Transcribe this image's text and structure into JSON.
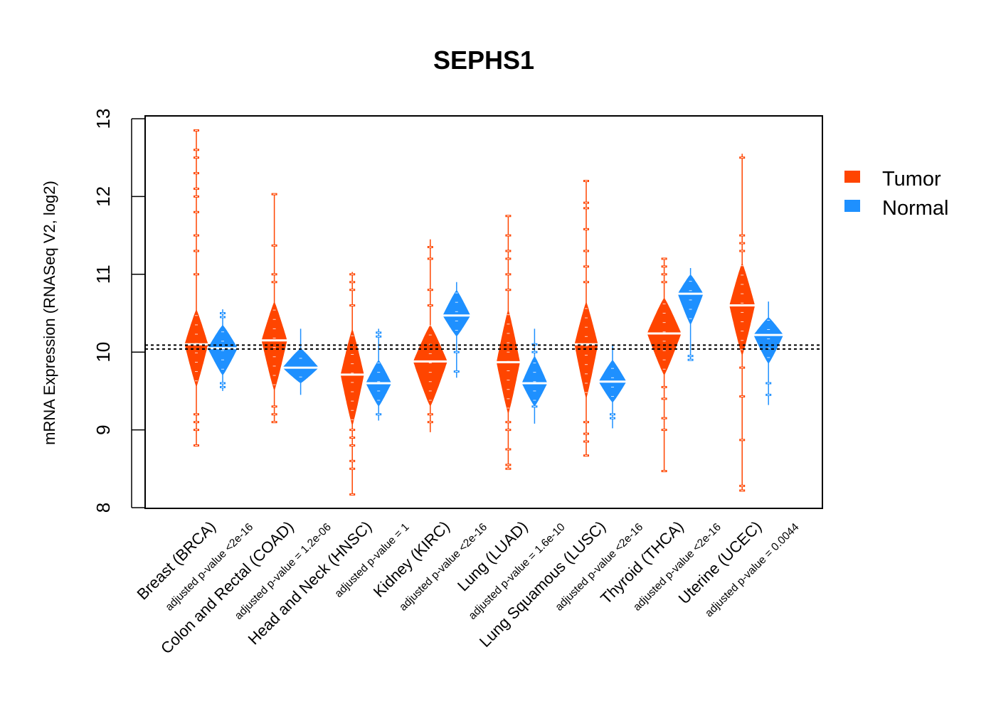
{
  "chart_data": {
    "type": "violin",
    "title": "SEPHS1",
    "xlabel": "",
    "ylabel": "mRNA Expression (RNASeq V2, log2)",
    "ylim": [
      8,
      13
    ],
    "yticks": [
      8,
      9,
      10,
      11,
      12,
      13
    ],
    "grid": false,
    "reference_lines": [
      10.04,
      10.09
    ],
    "reference_line_style": "dotted",
    "legend": {
      "placement": "right",
      "entries": [
        {
          "name": "Tumor",
          "color": "#FF4500"
        },
        {
          "name": "Normal",
          "color": "#1E90FF"
        }
      ]
    },
    "categories": [
      {
        "label": "Breast (BRCA)",
        "pvalue_label": "adjusted p-value <2e-16"
      },
      {
        "label": "Colon and Rectal (COAD)",
        "pvalue_label": "adjusted p-value = 1.2e-06"
      },
      {
        "label": "Head and Neck (HNSC)",
        "pvalue_label": "adjusted p-value = 1"
      },
      {
        "label": "Kidney (KIRC)",
        "pvalue_label": "adjusted p-value <2e-16"
      },
      {
        "label": "Lung (LUAD)",
        "pvalue_label": "adjusted p-value = 1.6e-10"
      },
      {
        "label": "Lung Squamous (LUSC)",
        "pvalue_label": "adjusted p-value <2e-16"
      },
      {
        "label": "Thyroid (THCA)",
        "pvalue_label": "adjusted p-value <2e-16"
      },
      {
        "label": "Uterine (UCEC)",
        "pvalue_label": "adjusted p-value = 0.0044"
      }
    ],
    "series": [
      {
        "name": "Tumor",
        "color": "#FF4500",
        "groups": [
          {
            "median": 10.1,
            "q1": 9.75,
            "q3": 10.45,
            "min": 8.8,
            "max": 12.85,
            "bulk_low": 9.55,
            "bulk_high": 10.55,
            "rel_width": 0.55
          },
          {
            "median": 10.15,
            "q1": 9.8,
            "q3": 10.5,
            "min": 9.1,
            "max": 12.03,
            "bulk_low": 9.5,
            "bulk_high": 10.65,
            "rel_width": 0.6
          },
          {
            "median": 9.71,
            "q1": 9.4,
            "q3": 10.05,
            "min": 8.17,
            "max": 11.03,
            "bulk_low": 9.05,
            "bulk_high": 10.3,
            "rel_width": 0.55
          },
          {
            "median": 9.88,
            "q1": 9.65,
            "q3": 10.15,
            "min": 8.97,
            "max": 11.45,
            "bulk_low": 9.3,
            "bulk_high": 10.35,
            "rel_width": 0.8
          },
          {
            "median": 9.87,
            "q1": 9.55,
            "q3": 10.2,
            "min": 8.5,
            "max": 11.75,
            "bulk_low": 9.2,
            "bulk_high": 10.55,
            "rel_width": 0.55
          },
          {
            "median": 10.1,
            "q1": 9.75,
            "q3": 10.4,
            "min": 8.67,
            "max": 12.2,
            "bulk_low": 9.4,
            "bulk_high": 10.65,
            "rel_width": 0.55
          },
          {
            "median": 10.24,
            "q1": 9.95,
            "q3": 10.5,
            "min": 8.47,
            "max": 11.2,
            "bulk_low": 9.7,
            "bulk_high": 10.7,
            "rel_width": 0.8
          },
          {
            "median": 10.6,
            "q1": 10.3,
            "q3": 10.85,
            "min": 8.22,
            "max": 12.55,
            "bulk_low": 9.95,
            "bulk_high": 11.15,
            "rel_width": 0.6
          }
        ]
      },
      {
        "name": "Normal",
        "color": "#1E90FF",
        "groups": [
          {
            "median": 10.05,
            "q1": 9.9,
            "q3": 10.2,
            "min": 9.5,
            "max": 10.55,
            "bulk_low": 9.7,
            "bulk_high": 10.35,
            "rel_width": 0.7
          },
          {
            "median": 9.8,
            "q1": 9.7,
            "q3": 9.92,
            "min": 9.45,
            "max": 10.3,
            "bulk_low": 9.6,
            "bulk_high": 10.05,
            "rel_width": 0.85
          },
          {
            "median": 9.6,
            "q1": 9.48,
            "q3": 9.72,
            "min": 9.12,
            "max": 10.3,
            "bulk_low": 9.3,
            "bulk_high": 9.9,
            "rel_width": 0.6
          },
          {
            "median": 10.47,
            "q1": 10.35,
            "q3": 10.65,
            "min": 9.67,
            "max": 10.9,
            "bulk_low": 10.2,
            "bulk_high": 10.8,
            "rel_width": 0.65
          },
          {
            "median": 9.6,
            "q1": 9.48,
            "q3": 9.72,
            "min": 9.08,
            "max": 10.3,
            "bulk_low": 9.3,
            "bulk_high": 9.95,
            "rel_width": 0.6
          },
          {
            "median": 9.62,
            "q1": 9.52,
            "q3": 9.72,
            "min": 9.02,
            "max": 10.08,
            "bulk_low": 9.35,
            "bulk_high": 9.9,
            "rel_width": 0.65
          },
          {
            "median": 10.75,
            "q1": 10.6,
            "q3": 10.85,
            "min": 9.9,
            "max": 11.08,
            "bulk_low": 10.35,
            "bulk_high": 11.0,
            "rel_width": 0.6
          },
          {
            "median": 10.22,
            "q1": 10.1,
            "q3": 10.3,
            "min": 9.32,
            "max": 10.65,
            "bulk_low": 9.85,
            "bulk_high": 10.45,
            "rel_width": 0.7
          }
        ]
      }
    ],
    "outliers": {
      "Tumor": [
        [
          8.8,
          9.0,
          9.1,
          9.2,
          11.0,
          11.3,
          11.5,
          11.8,
          12.0,
          12.1,
          12.3,
          12.5,
          12.6,
          12.85
        ],
        [
          9.1,
          9.2,
          9.3,
          10.9,
          11.0,
          11.37,
          12.03
        ],
        [
          8.17,
          8.5,
          8.6,
          8.8,
          8.9,
          9.0,
          10.6,
          10.8,
          10.9,
          11.0
        ],
        [
          9.1,
          9.2,
          10.6,
          10.8,
          11.2,
          11.35
        ],
        [
          8.5,
          8.55,
          8.75,
          9.0,
          9.1,
          10.8,
          11.0,
          11.2,
          11.3,
          11.5,
          11.75
        ],
        [
          8.67,
          8.85,
          8.95,
          9.1,
          10.9,
          11.1,
          11.3,
          11.58,
          11.85,
          11.92,
          12.2
        ],
        [
          8.47,
          9.0,
          9.15,
          9.4,
          9.55,
          10.9,
          11.0,
          11.1,
          11.2
        ],
        [
          8.22,
          8.28,
          8.87,
          9.43,
          9.8,
          11.3,
          11.4,
          11.5,
          12.5
        ]
      ],
      "Normal": [
        [
          9.55,
          9.6,
          10.45,
          10.5
        ],
        [],
        [
          9.2,
          10.2,
          10.25
        ],
        [
          9.75,
          10.0
        ],
        [
          9.3,
          10.0,
          10.1
        ],
        [
          9.15,
          9.2
        ],
        [
          9.9,
          9.95
        ],
        [
          9.45,
          9.6
        ]
      ]
    }
  }
}
